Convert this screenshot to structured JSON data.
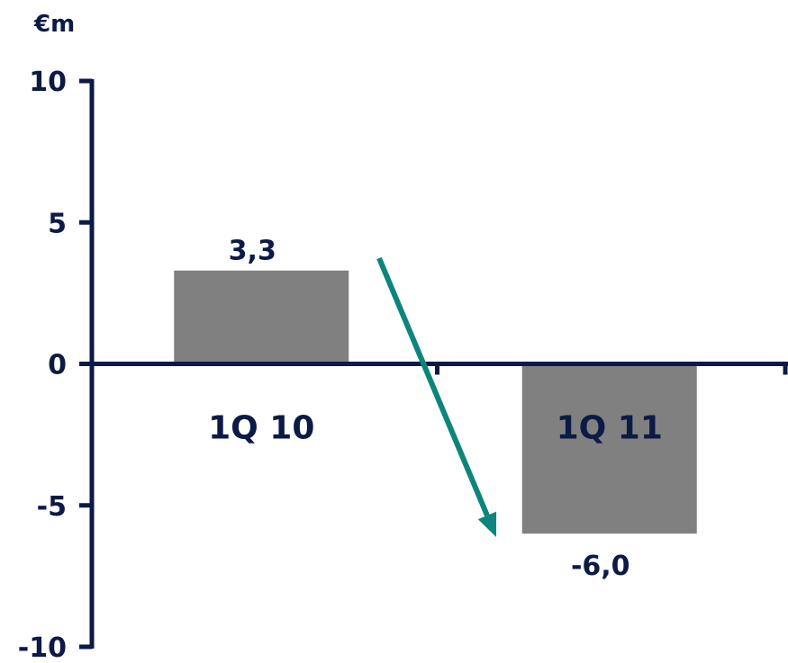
{
  "chart_data": {
    "type": "bar",
    "unit": "€m",
    "categories": [
      "1Q 10",
      "1Q 11"
    ],
    "values": [
      3.3,
      -6.0
    ],
    "value_labels": [
      "3,3",
      "-6,0"
    ],
    "ylim": [
      -10,
      10
    ],
    "yticks": [
      10,
      5,
      0,
      -5,
      -10
    ],
    "ytick_labels": [
      "10",
      "5",
      "0",
      "-5",
      "-10"
    ],
    "grid": false,
    "legend": "none",
    "annotation": "trend-arrow-down",
    "colors": {
      "bar": "#808080",
      "axis": "#0c1a45",
      "text": "#0c1a45",
      "arrow": "#0e857a"
    }
  }
}
